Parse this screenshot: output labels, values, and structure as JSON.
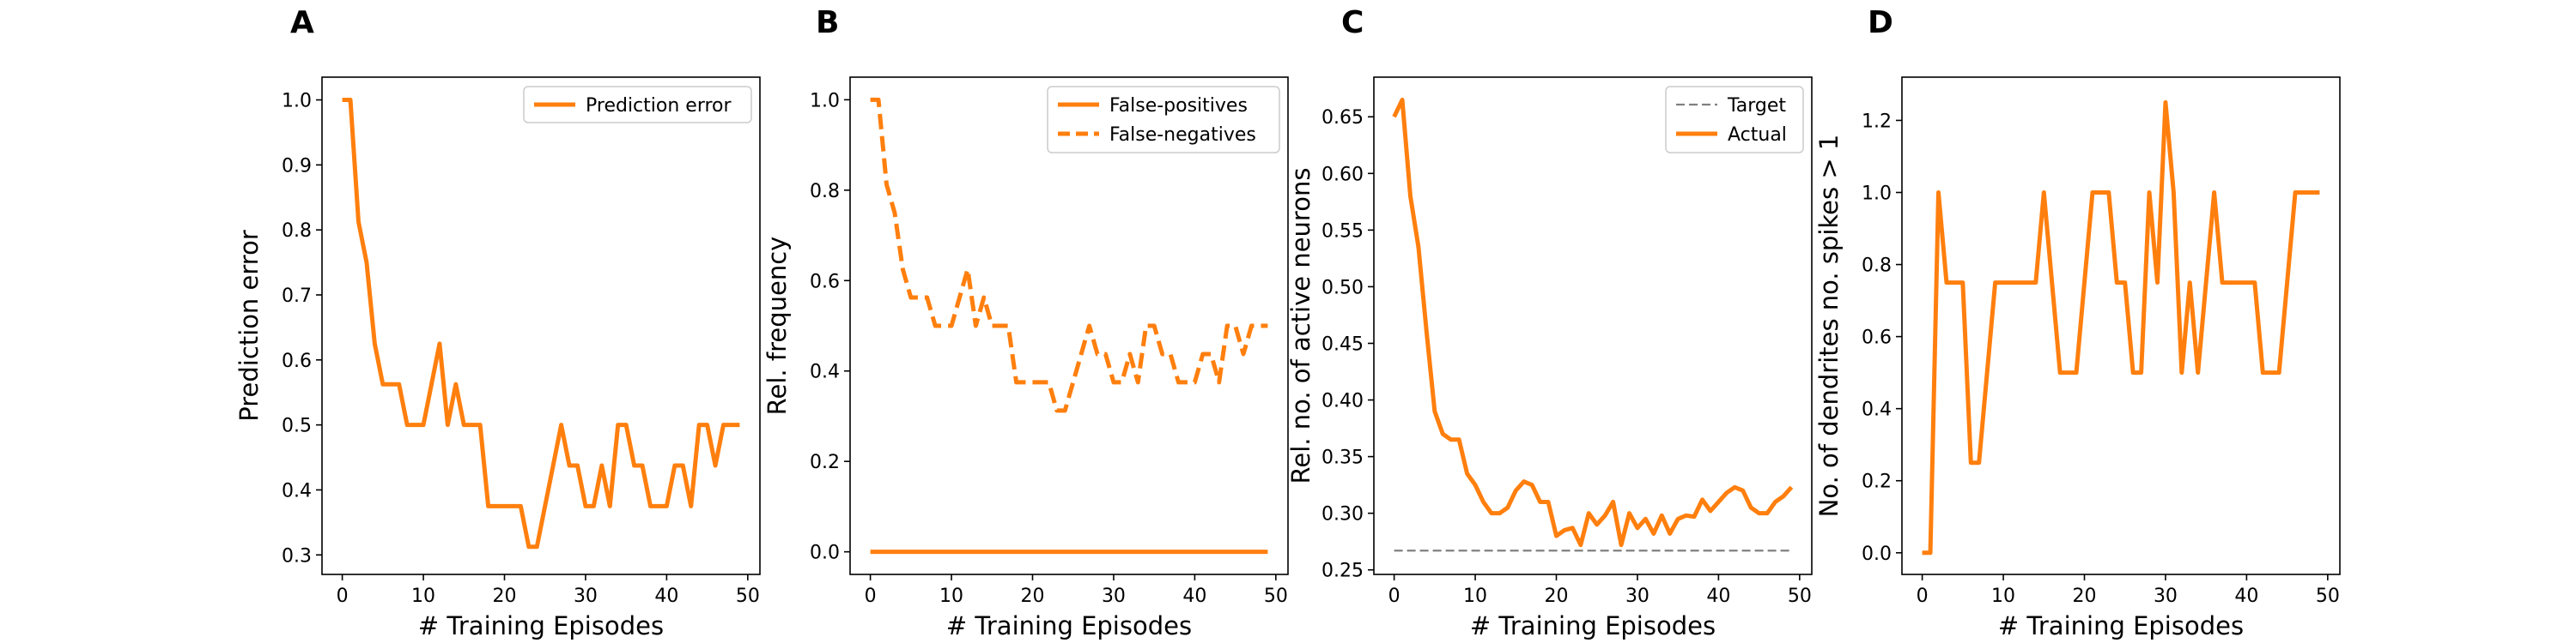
{
  "chart_data": [
    {
      "panel": "A",
      "type": "line",
      "xlabel": "# Training Episodes",
      "ylabel": "Prediction error",
      "xlim": [
        -2.5,
        51.5
      ],
      "ylim": [
        0.27,
        1.035
      ],
      "xticks": [
        0,
        10,
        20,
        30,
        40,
        50
      ],
      "yticks": [
        0.3,
        0.4,
        0.5,
        0.6,
        0.7,
        0.8,
        0.9,
        1.0
      ],
      "yticklabels": [
        "0.3",
        "0.4",
        "0.5",
        "0.6",
        "0.7",
        "0.8",
        "0.9",
        "1.0"
      ],
      "legend_position": "top-right",
      "series": [
        {
          "name": "Prediction error",
          "style": "solid",
          "color": "#ff7f0e",
          "x": [
            0,
            1,
            2,
            3,
            4,
            5,
            6,
            7,
            8,
            9,
            10,
            11,
            12,
            13,
            14,
            15,
            16,
            17,
            18,
            19,
            20,
            21,
            22,
            23,
            24,
            25,
            26,
            27,
            28,
            29,
            30,
            31,
            32,
            33,
            34,
            35,
            36,
            37,
            38,
            39,
            40,
            41,
            42,
            43,
            44,
            45,
            46,
            47,
            48,
            49
          ],
          "y": [
            1.0,
            1.0,
            0.8125,
            0.75,
            0.625,
            0.5625,
            0.5625,
            0.5625,
            0.5,
            0.5,
            0.5,
            0.5625,
            0.625,
            0.5,
            0.5625,
            0.5,
            0.5,
            0.5,
            0.375,
            0.375,
            0.375,
            0.375,
            0.375,
            0.3125,
            0.3125,
            0.375,
            0.4375,
            0.5,
            0.4375,
            0.4375,
            0.375,
            0.375,
            0.4375,
            0.375,
            0.5,
            0.5,
            0.4375,
            0.4375,
            0.375,
            0.375,
            0.375,
            0.4375,
            0.4375,
            0.375,
            0.5,
            0.5,
            0.4375,
            0.5,
            0.5,
            0.5
          ]
        }
      ]
    },
    {
      "panel": "B",
      "type": "line",
      "xlabel": "# Training Episodes",
      "ylabel": "Rel. frequency",
      "xlim": [
        -2.5,
        51.5
      ],
      "ylim": [
        -0.05,
        1.05
      ],
      "xticks": [
        0,
        10,
        20,
        30,
        40,
        50
      ],
      "yticks": [
        0.0,
        0.2,
        0.4,
        0.6,
        0.8,
        1.0
      ],
      "yticklabels": [
        "0.0",
        "0.2",
        "0.4",
        "0.6",
        "0.8",
        "1.0"
      ],
      "legend_position": "top-right",
      "series": [
        {
          "name": "False-positives",
          "style": "solid",
          "color": "#ff7f0e",
          "x": [
            0,
            1,
            2,
            3,
            4,
            5,
            6,
            7,
            8,
            9,
            10,
            11,
            12,
            13,
            14,
            15,
            16,
            17,
            18,
            19,
            20,
            21,
            22,
            23,
            24,
            25,
            26,
            27,
            28,
            29,
            30,
            31,
            32,
            33,
            34,
            35,
            36,
            37,
            38,
            39,
            40,
            41,
            42,
            43,
            44,
            45,
            46,
            47,
            48,
            49
          ],
          "y": [
            0,
            0,
            0,
            0,
            0,
            0,
            0,
            0,
            0,
            0,
            0,
            0,
            0,
            0,
            0,
            0,
            0,
            0,
            0,
            0,
            0,
            0,
            0,
            0,
            0,
            0,
            0,
            0,
            0,
            0,
            0,
            0,
            0,
            0,
            0,
            0,
            0,
            0,
            0,
            0,
            0,
            0,
            0,
            0,
            0,
            0,
            0,
            0,
            0,
            0
          ]
        },
        {
          "name": "False-negatives",
          "style": "dashed",
          "color": "#ff7f0e",
          "x": [
            0,
            1,
            2,
            3,
            4,
            5,
            6,
            7,
            8,
            9,
            10,
            11,
            12,
            13,
            14,
            15,
            16,
            17,
            18,
            19,
            20,
            21,
            22,
            23,
            24,
            25,
            26,
            27,
            28,
            29,
            30,
            31,
            32,
            33,
            34,
            35,
            36,
            37,
            38,
            39,
            40,
            41,
            42,
            43,
            44,
            45,
            46,
            47,
            48,
            49
          ],
          "y": [
            1.0,
            1.0,
            0.8125,
            0.75,
            0.625,
            0.5625,
            0.5625,
            0.5625,
            0.5,
            0.5,
            0.5,
            0.5625,
            0.625,
            0.5,
            0.5625,
            0.5,
            0.5,
            0.5,
            0.375,
            0.375,
            0.375,
            0.375,
            0.375,
            0.3125,
            0.3125,
            0.375,
            0.4375,
            0.5,
            0.4375,
            0.4375,
            0.375,
            0.375,
            0.4375,
            0.375,
            0.5,
            0.5,
            0.4375,
            0.4375,
            0.375,
            0.375,
            0.375,
            0.4375,
            0.4375,
            0.375,
            0.5,
            0.5,
            0.4375,
            0.5,
            0.5,
            0.5
          ]
        }
      ]
    },
    {
      "panel": "C",
      "type": "line",
      "xlabel": "# Training Episodes",
      "ylabel": "Rel. no. of active neurons",
      "xlim": [
        -2.5,
        51.5
      ],
      "ylim": [
        0.246,
        0.685
      ],
      "xticks": [
        0,
        10,
        20,
        30,
        40,
        50
      ],
      "yticks": [
        0.25,
        0.3,
        0.35,
        0.4,
        0.45,
        0.5,
        0.55,
        0.6,
        0.65
      ],
      "yticklabels": [
        "0.25",
        "0.30",
        "0.35",
        "0.40",
        "0.45",
        "0.50",
        "0.55",
        "0.60",
        "0.65"
      ],
      "legend_position": "top-right",
      "series": [
        {
          "name": "Target",
          "style": "dashed",
          "color": "#808080",
          "x": [
            0,
            49
          ],
          "y": [
            0.267,
            0.267
          ]
        },
        {
          "name": "Actual",
          "style": "solid",
          "color": "#ff7f0e",
          "x": [
            0,
            1,
            2,
            3,
            4,
            5,
            6,
            7,
            8,
            9,
            10,
            11,
            12,
            13,
            14,
            15,
            16,
            17,
            18,
            19,
            20,
            21,
            22,
            23,
            24,
            25,
            26,
            27,
            28,
            29,
            30,
            31,
            32,
            33,
            34,
            35,
            36,
            37,
            38,
            39,
            40,
            41,
            42,
            43,
            44,
            45,
            46,
            47,
            48,
            49
          ],
          "y": [
            0.65,
            0.665,
            0.58,
            0.535,
            0.46,
            0.39,
            0.37,
            0.365,
            0.365,
            0.335,
            0.325,
            0.31,
            0.3,
            0.3,
            0.305,
            0.32,
            0.328,
            0.325,
            0.31,
            0.31,
            0.28,
            0.285,
            0.287,
            0.272,
            0.3,
            0.29,
            0.298,
            0.31,
            0.272,
            0.3,
            0.287,
            0.295,
            0.282,
            0.298,
            0.282,
            0.295,
            0.298,
            0.297,
            0.312,
            0.302,
            0.31,
            0.318,
            0.323,
            0.32,
            0.305,
            0.3,
            0.3,
            0.31,
            0.315,
            0.323
          ]
        }
      ]
    },
    {
      "panel": "D",
      "type": "line",
      "xlabel": "# Training Episodes",
      "ylabel": "No. of dendrites no. spikes > 1",
      "xlim": [
        -2.5,
        51.5
      ],
      "ylim": [
        -0.06,
        1.32
      ],
      "xticks": [
        0,
        10,
        20,
        30,
        40,
        50
      ],
      "yticks": [
        0.0,
        0.2,
        0.4,
        0.6,
        0.8,
        1.0,
        1.2
      ],
      "yticklabels": [
        "0.0",
        "0.2",
        "0.4",
        "0.6",
        "0.8",
        "1.0",
        "1.2"
      ],
      "legend_position": "none",
      "series": [
        {
          "name": "",
          "style": "solid",
          "color": "#ff7f0e",
          "x": [
            0,
            1,
            2,
            3,
            4,
            5,
            6,
            7,
            8,
            9,
            10,
            11,
            12,
            13,
            14,
            15,
            16,
            17,
            18,
            19,
            20,
            21,
            22,
            23,
            24,
            25,
            26,
            27,
            28,
            29,
            30,
            31,
            32,
            33,
            34,
            35,
            36,
            37,
            38,
            39,
            40,
            41,
            42,
            43,
            44,
            45,
            46,
            47,
            48,
            49
          ],
          "y": [
            0.0,
            0.0,
            1.0,
            0.75,
            0.75,
            0.75,
            0.25,
            0.25,
            0.5,
            0.75,
            0.75,
            0.75,
            0.75,
            0.75,
            0.75,
            1.0,
            0.75,
            0.5,
            0.5,
            0.5,
            0.75,
            1.0,
            1.0,
            1.0,
            0.75,
            0.75,
            0.5,
            0.5,
            1.0,
            0.75,
            1.25,
            1.0,
            0.5,
            0.75,
            0.5,
            0.75,
            1.0,
            0.75,
            0.75,
            0.75,
            0.75,
            0.75,
            0.5,
            0.5,
            0.5,
            0.75,
            1.0,
            1.0,
            1.0,
            1.0
          ]
        }
      ]
    }
  ]
}
